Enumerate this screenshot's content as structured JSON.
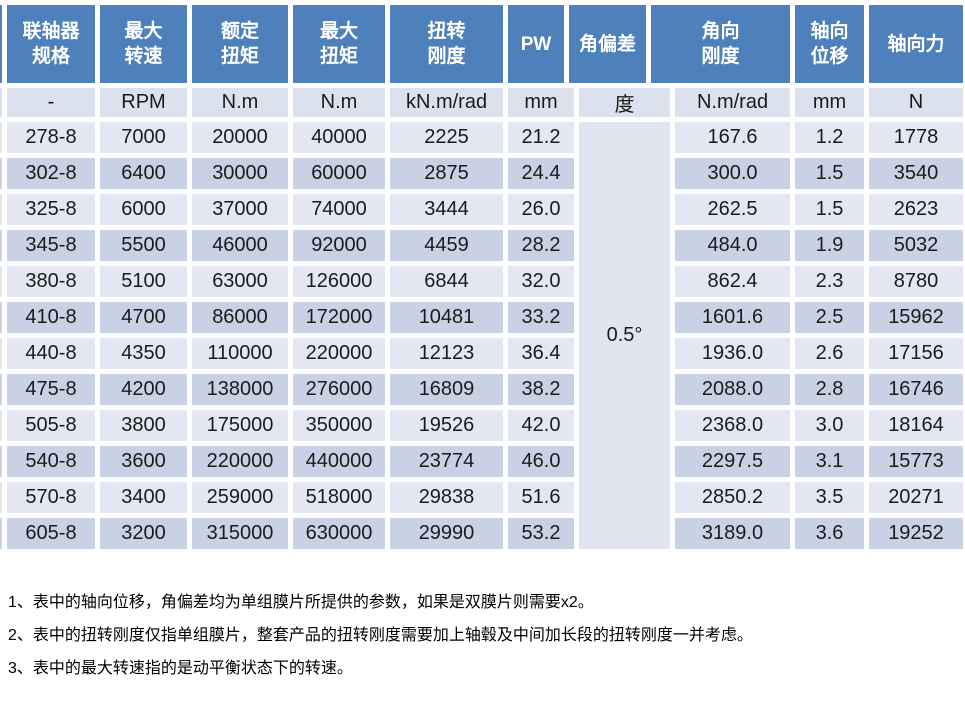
{
  "colors": {
    "page_bg": "#ffffff",
    "header_bg": "#4e80bb",
    "header_text": "#ffffff",
    "unit_row_bg": "#dce1ee",
    "row_light_bg": "#e4e7f2",
    "row_dark_bg": "#c9d1e5",
    "merged_cell_bg": "#e2e5f0",
    "body_text": "#1b1b1b"
  },
  "table": {
    "columns": [
      {
        "key": "spec",
        "label": "联轴器\n规格",
        "unit": "-"
      },
      {
        "key": "max_speed",
        "label": "最大\n转速",
        "unit": "RPM"
      },
      {
        "key": "rated_torque",
        "label": "额定\n扭矩",
        "unit": "N.m"
      },
      {
        "key": "max_torque",
        "label": "最大\n扭矩",
        "unit": "N.m"
      },
      {
        "key": "torsional_stiffness",
        "label": "扭转\n刚度",
        "unit": "kN.m/rad"
      },
      {
        "key": "pw",
        "label": "PW",
        "unit": "mm"
      },
      {
        "key": "angular_deviation",
        "label": "角偏差",
        "unit": "度"
      },
      {
        "key": "angular_stiffness",
        "label": "角向\n刚度",
        "unit": "N.m/rad"
      },
      {
        "key": "axial_displacement",
        "label": "轴向\n位移",
        "unit": "mm"
      },
      {
        "key": "axial_force",
        "label": "轴向力",
        "unit": "N"
      }
    ],
    "angular_deviation_value": "0.5°",
    "rows": [
      {
        "spec": "278-8",
        "max_speed": "7000",
        "rated_torque": "20000",
        "max_torque": "40000",
        "torsional_stiffness": "2225",
        "pw": "21.2",
        "angular_stiffness": "167.6",
        "axial_displacement": "1.2",
        "axial_force": "1778"
      },
      {
        "spec": "302-8",
        "max_speed": "6400",
        "rated_torque": "30000",
        "max_torque": "60000",
        "torsional_stiffness": "2875",
        "pw": "24.4",
        "angular_stiffness": "300.0",
        "axial_displacement": "1.5",
        "axial_force": "3540"
      },
      {
        "spec": "325-8",
        "max_speed": "6000",
        "rated_torque": "37000",
        "max_torque": "74000",
        "torsional_stiffness": "3444",
        "pw": "26.0",
        "angular_stiffness": "262.5",
        "axial_displacement": "1.5",
        "axial_force": "2623"
      },
      {
        "spec": "345-8",
        "max_speed": "5500",
        "rated_torque": "46000",
        "max_torque": "92000",
        "torsional_stiffness": "4459",
        "pw": "28.2",
        "angular_stiffness": "484.0",
        "axial_displacement": "1.9",
        "axial_force": "5032"
      },
      {
        "spec": "380-8",
        "max_speed": "5100",
        "rated_torque": "63000",
        "max_torque": "126000",
        "torsional_stiffness": "6844",
        "pw": "32.0",
        "angular_stiffness": "862.4",
        "axial_displacement": "2.3",
        "axial_force": "8780"
      },
      {
        "spec": "410-8",
        "max_speed": "4700",
        "rated_torque": "86000",
        "max_torque": "172000",
        "torsional_stiffness": "10481",
        "pw": "33.2",
        "angular_stiffness": "1601.6",
        "axial_displacement": "2.5",
        "axial_force": "15962"
      },
      {
        "spec": "440-8",
        "max_speed": "4350",
        "rated_torque": "110000",
        "max_torque": "220000",
        "torsional_stiffness": "12123",
        "pw": "36.4",
        "angular_stiffness": "1936.0",
        "axial_displacement": "2.6",
        "axial_force": "17156"
      },
      {
        "spec": "475-8",
        "max_speed": "4200",
        "rated_torque": "138000",
        "max_torque": "276000",
        "torsional_stiffness": "16809",
        "pw": "38.2",
        "angular_stiffness": "2088.0",
        "axial_displacement": "2.8",
        "axial_force": "16746"
      },
      {
        "spec": "505-8",
        "max_speed": "3800",
        "rated_torque": "175000",
        "max_torque": "350000",
        "torsional_stiffness": "19526",
        "pw": "42.0",
        "angular_stiffness": "2368.0",
        "axial_displacement": "3.0",
        "axial_force": "18164"
      },
      {
        "spec": "540-8",
        "max_speed": "3600",
        "rated_torque": "220000",
        "max_torque": "440000",
        "torsional_stiffness": "23774",
        "pw": "46.0",
        "angular_stiffness": "2297.5",
        "axial_displacement": "3.1",
        "axial_force": "15773"
      },
      {
        "spec": "570-8",
        "max_speed": "3400",
        "rated_torque": "259000",
        "max_torque": "518000",
        "torsional_stiffness": "29838",
        "pw": "51.6",
        "angular_stiffness": "2850.2",
        "axial_displacement": "3.5",
        "axial_force": "20271"
      },
      {
        "spec": "605-8",
        "max_speed": "3200",
        "rated_torque": "315000",
        "max_torque": "630000",
        "torsional_stiffness": "29990",
        "pw": "53.2",
        "angular_stiffness": "3189.0",
        "axial_displacement": "3.6",
        "axial_force": "19252"
      }
    ]
  },
  "notes": [
    "1、表中的轴向位移，角偏差均为单组膜片所提供的参数，如果是双膜片则需要x2。",
    "2、表中的扭转刚度仅指单组膜片，整套产品的扭转刚度需要加上轴毂及中间加长段的扭转刚度一并考虑。",
    "3、表中的最大转速指的是动平衡状态下的转速。"
  ]
}
